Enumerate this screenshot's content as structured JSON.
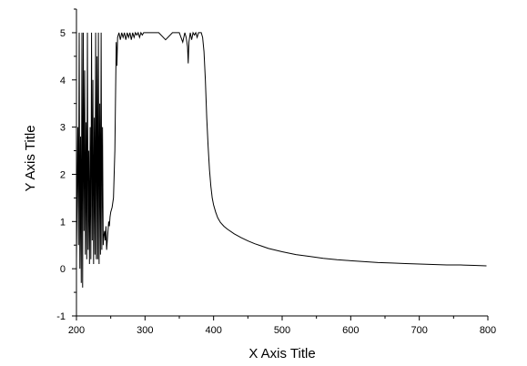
{
  "chart_data": {
    "type": "line",
    "title": "",
    "xlabel": "X Axis Title",
    "ylabel": "Y Axis Title",
    "xlim": [
      200,
      800
    ],
    "ylim": [
      -1,
      5.5
    ],
    "x_ticks": [
      200,
      300,
      400,
      500,
      600,
      700,
      800
    ],
    "y_ticks": [
      -1,
      0,
      1,
      2,
      3,
      4,
      5
    ],
    "x_tick_labels": [
      "200",
      "300",
      "400",
      "500",
      "600",
      "700",
      "800"
    ],
    "y_tick_labels": [
      "-1",
      "0",
      "1",
      "2",
      "3",
      "4",
      "5"
    ],
    "grid": false,
    "legend": "none",
    "colors": {
      "line": "#000000",
      "axis": "#000000",
      "background": "#ffffff"
    },
    "series": [
      {
        "x": [
          200,
          202,
          203,
          204,
          205,
          206,
          207,
          208,
          209,
          210,
          211,
          212,
          213,
          214,
          215,
          216,
          217,
          218,
          219,
          220,
          221,
          222,
          223,
          224,
          225,
          226,
          227,
          228,
          229,
          230,
          231,
          232,
          233,
          234,
          235,
          236,
          237,
          238,
          239,
          240,
          241,
          242,
          243,
          244,
          245,
          246,
          247,
          248,
          249,
          250,
          252,
          254,
          256,
          258,
          259,
          260,
          262,
          264,
          266,
          268,
          270,
          272,
          274,
          276,
          278,
          280,
          282,
          284,
          286,
          288,
          290,
          292,
          294,
          296,
          298,
          300,
          320,
          330,
          340,
          350,
          355,
          358,
          360,
          362,
          363,
          364,
          366,
          368,
          370,
          372,
          374,
          376,
          378,
          380,
          382,
          384,
          386,
          388,
          390,
          392,
          394,
          396,
          398,
          400,
          403,
          406,
          410,
          415,
          420,
          430,
          440,
          450,
          460,
          470,
          480,
          500,
          520,
          540,
          560,
          580,
          600,
          620,
          640,
          660,
          680,
          700,
          720,
          740,
          760,
          780,
          798
        ],
        "y": [
          0.2,
          3,
          0.5,
          5,
          0,
          2.8,
          -0.3,
          5,
          -0.4,
          5,
          0.8,
          4.2,
          0.3,
          3.1,
          0.2,
          5,
          0.4,
          2.5,
          0.1,
          3,
          0.2,
          5,
          0.6,
          4,
          0.1,
          3.2,
          0.3,
          5,
          0.2,
          4.5,
          0.2,
          5,
          0.1,
          3.5,
          0.3,
          5,
          0.4,
          3,
          0.5,
          0.7,
          0.8,
          0.6,
          0.9,
          0.4,
          0.6,
          0.8,
          1,
          0.9,
          1.1,
          1.2,
          1.3,
          1.5,
          2.5,
          4.8,
          4.3,
          4.9,
          5,
          4.85,
          5,
          4.9,
          5,
          4.85,
          5,
          4.9,
          5,
          4.85,
          5,
          4.9,
          5,
          4.95,
          5,
          4.9,
          5,
          4.95,
          5,
          5,
          5,
          4.85,
          5,
          5,
          4.8,
          5,
          4.9,
          4.7,
          4.35,
          4.8,
          5,
          4.85,
          5,
          4.95,
          5,
          4.9,
          5,
          5,
          5,
          4.9,
          4.6,
          4,
          3.2,
          2.6,
          2.1,
          1.75,
          1.5,
          1.35,
          1.2,
          1.08,
          0.98,
          0.9,
          0.84,
          0.74,
          0.66,
          0.59,
          0.53,
          0.48,
          0.43,
          0.36,
          0.3,
          0.26,
          0.22,
          0.19,
          0.17,
          0.15,
          0.13,
          0.12,
          0.11,
          0.1,
          0.09,
          0.08,
          0.08,
          0.07,
          0.06
        ]
      }
    ]
  }
}
